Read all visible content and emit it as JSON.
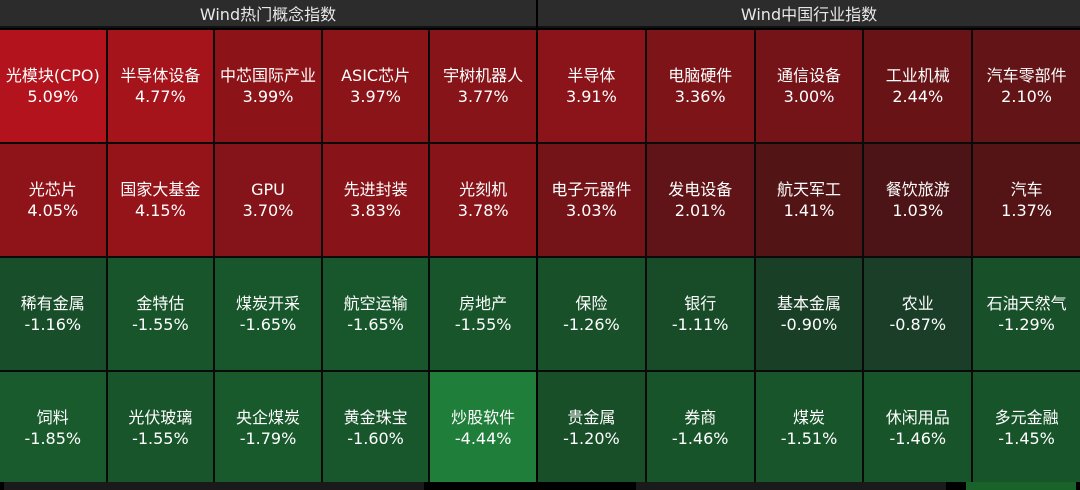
{
  "left_panel": {
    "title": "Wind热门概念指数",
    "tiles": [
      {
        "name": "光模块(CPO)",
        "pct": "5.09%",
        "color": "#b2131c"
      },
      {
        "name": "半导体设备",
        "pct": "4.77%",
        "color": "#a5131b"
      },
      {
        "name": "中芯国际产业",
        "pct": "3.99%",
        "color": "#8c1419"
      },
      {
        "name": "ASIC芯片",
        "pct": "3.97%",
        "color": "#8b1419"
      },
      {
        "name": "宇树机器人",
        "pct": "3.77%",
        "color": "#861419"
      },
      {
        "name": "光芯片",
        "pct": "4.05%",
        "color": "#8f1419"
      },
      {
        "name": "国家大基金",
        "pct": "4.15%",
        "color": "#94141a"
      },
      {
        "name": "GPU",
        "pct": "3.70%",
        "color": "#841419"
      },
      {
        "name": "先进封装",
        "pct": "3.83%",
        "color": "#881419"
      },
      {
        "name": "光刻机",
        "pct": "3.78%",
        "color": "#861419"
      },
      {
        "name": "稀有金属",
        "pct": "-1.16%",
        "color": "#184f2a"
      },
      {
        "name": "金特估",
        "pct": "-1.55%",
        "color": "#18552b"
      },
      {
        "name": "煤炭开采",
        "pct": "-1.65%",
        "color": "#18572c"
      },
      {
        "name": "航空运输",
        "pct": "-1.65%",
        "color": "#18572c"
      },
      {
        "name": "房地产",
        "pct": "-1.55%",
        "color": "#18552b"
      },
      {
        "name": "饲料",
        "pct": "-1.85%",
        "color": "#195b2d"
      },
      {
        "name": "光伏玻璃",
        "pct": "-1.55%",
        "color": "#18552b"
      },
      {
        "name": "央企煤炭",
        "pct": "-1.79%",
        "color": "#195a2d"
      },
      {
        "name": "黄金珠宝",
        "pct": "-1.60%",
        "color": "#18562c"
      },
      {
        "name": "炒股软件",
        "pct": "-4.44%",
        "color": "#1f7e3a"
      }
    ]
  },
  "right_panel": {
    "title": "Wind中国行业指数",
    "tiles": [
      {
        "name": "半导体",
        "pct": "3.91%",
        "color": "#8a1419"
      },
      {
        "name": "电脑硬件",
        "pct": "3.36%",
        "color": "#7d1418"
      },
      {
        "name": "通信设备",
        "pct": "3.00%",
        "color": "#741418"
      },
      {
        "name": "工业机械",
        "pct": "2.44%",
        "color": "#681417"
      },
      {
        "name": "汽车零部件",
        "pct": "2.10%",
        "color": "#631417"
      },
      {
        "name": "电子元器件",
        "pct": "3.03%",
        "color": "#751418"
      },
      {
        "name": "发电设备",
        "pct": "2.01%",
        "color": "#611417"
      },
      {
        "name": "航天军工",
        "pct": "1.41%",
        "color": "#531416"
      },
      {
        "name": "餐饮旅游",
        "pct": "1.03%",
        "color": "#4c1416"
      },
      {
        "name": "汽车",
        "pct": "1.37%",
        "color": "#541416"
      },
      {
        "name": "保险",
        "pct": "-1.26%",
        "color": "#185029"
      },
      {
        "name": "银行",
        "pct": "-1.11%",
        "color": "#184c28"
      },
      {
        "name": "基本金属",
        "pct": "-0.90%",
        "color": "#1a3f27"
      },
      {
        "name": "农业",
        "pct": "-0.87%",
        "color": "#1a3e27"
      },
      {
        "name": "石油天然气",
        "pct": "-1.29%",
        "color": "#185029"
      },
      {
        "name": "贵金属",
        "pct": "-1.20%",
        "color": "#184f29"
      },
      {
        "name": "券商",
        "pct": "-1.46%",
        "color": "#18542a"
      },
      {
        "name": "煤炭",
        "pct": "-1.51%",
        "color": "#18552b"
      },
      {
        "name": "休闲用品",
        "pct": "-1.46%",
        "color": "#18542a"
      },
      {
        "name": "多元金融",
        "pct": "-1.45%",
        "color": "#18542a"
      }
    ]
  }
}
